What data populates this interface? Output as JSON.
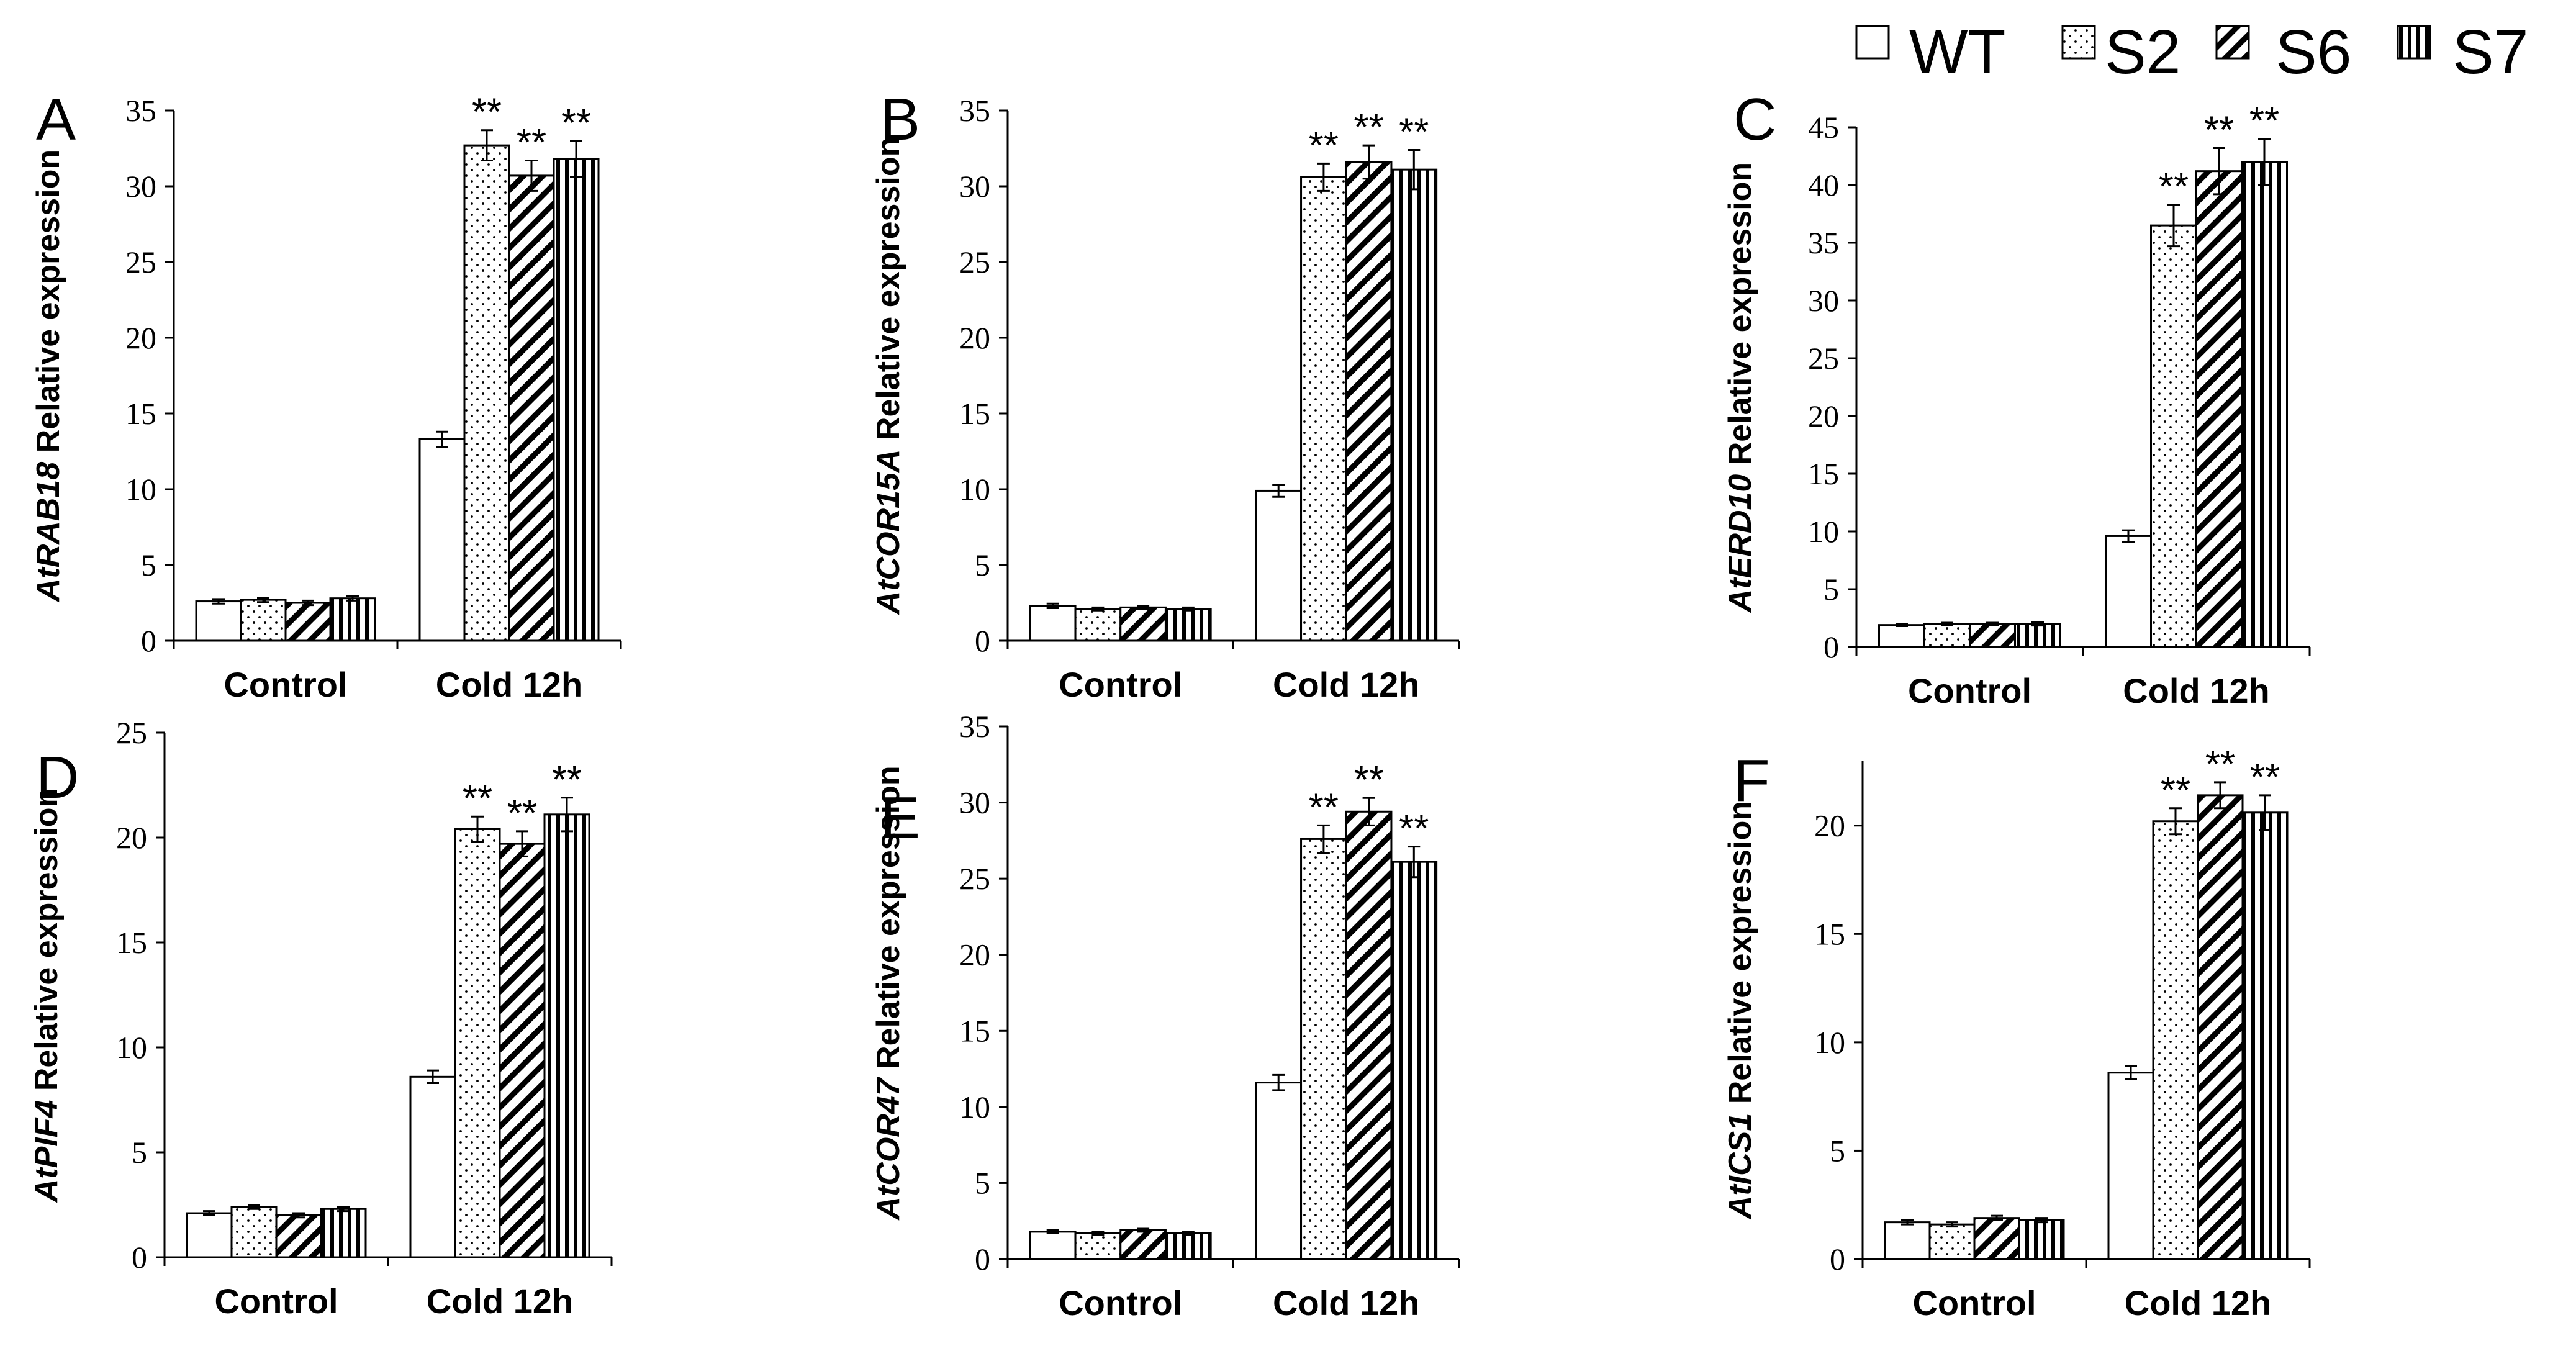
{
  "figure": {
    "legend": [
      {
        "key": "WT",
        "label": "WT",
        "pattern": "none"
      },
      {
        "key": "S2",
        "label": "S2",
        "pattern": "dots"
      },
      {
        "key": "S6",
        "label": "S6",
        "pattern": "diag"
      },
      {
        "key": "S7",
        "label": "S7",
        "pattern": "vert"
      }
    ],
    "significance_marker": "**",
    "colors": {
      "ink": "#000000",
      "background": "#ffffff"
    }
  },
  "chart_data": [
    {
      "type": "bar",
      "panel_letter": "A",
      "gene": "AtRAB18",
      "ylabel_suffix": "Relative expression",
      "categories": [
        "Control",
        "Cold 12h"
      ],
      "ylim": [
        0,
        35
      ],
      "yticks": [
        0,
        5,
        10,
        15,
        20,
        25,
        30,
        35
      ],
      "series": [
        {
          "name": "WT",
          "values": [
            2.6,
            13.3
          ],
          "errors": [
            0.15,
            0.5
          ],
          "significant": [
            false,
            false
          ]
        },
        {
          "name": "S2",
          "values": [
            2.7,
            32.7
          ],
          "errors": [
            0.15,
            1.0
          ],
          "significant": [
            false,
            true
          ]
        },
        {
          "name": "S6",
          "values": [
            2.5,
            30.7
          ],
          "errors": [
            0.15,
            1.0
          ],
          "significant": [
            false,
            true
          ]
        },
        {
          "name": "S7",
          "values": [
            2.8,
            31.8
          ],
          "errors": [
            0.15,
            1.2
          ],
          "significant": [
            false,
            true
          ]
        }
      ]
    },
    {
      "type": "bar",
      "panel_letter": "B",
      "gene": "AtCOR15A",
      "ylabel_suffix": "Relative expression",
      "categories": [
        "Control",
        "Cold 12h"
      ],
      "ylim": [
        0,
        35
      ],
      "yticks": [
        0,
        5,
        10,
        15,
        20,
        25,
        30,
        35
      ],
      "series": [
        {
          "name": "WT",
          "values": [
            2.3,
            9.9
          ],
          "errors": [
            0.15,
            0.4
          ],
          "significant": [
            false,
            false
          ]
        },
        {
          "name": "S2",
          "values": [
            2.1,
            30.6
          ],
          "errors": [
            0.1,
            0.9
          ],
          "significant": [
            false,
            true
          ]
        },
        {
          "name": "S6",
          "values": [
            2.2,
            31.6
          ],
          "errors": [
            0.1,
            1.1
          ],
          "significant": [
            false,
            true
          ]
        },
        {
          "name": "S7",
          "values": [
            2.1,
            31.1
          ],
          "errors": [
            0.1,
            1.3
          ],
          "significant": [
            false,
            true
          ]
        }
      ]
    },
    {
      "type": "bar",
      "panel_letter": "C",
      "gene": "AtERD10",
      "ylabel_suffix": "Relative expression",
      "categories": [
        "Control",
        "Cold 12h"
      ],
      "ylim": [
        0,
        45
      ],
      "yticks": [
        0,
        5,
        10,
        15,
        20,
        25,
        30,
        35,
        40,
        45
      ],
      "series": [
        {
          "name": "WT",
          "values": [
            1.9,
            9.6
          ],
          "errors": [
            0.1,
            0.5
          ],
          "significant": [
            false,
            false
          ]
        },
        {
          "name": "S2",
          "values": [
            2.0,
            36.5
          ],
          "errors": [
            0.1,
            1.8
          ],
          "significant": [
            false,
            true
          ]
        },
        {
          "name": "S6",
          "values": [
            2.0,
            41.2
          ],
          "errors": [
            0.1,
            2.0
          ],
          "significant": [
            false,
            true
          ]
        },
        {
          "name": "S7",
          "values": [
            2.0,
            42.0
          ],
          "errors": [
            0.15,
            2.0
          ],
          "significant": [
            false,
            true
          ]
        }
      ]
    },
    {
      "type": "bar",
      "panel_letter": "D",
      "gene": "AtPIF4",
      "ylabel_suffix": "Relative expression",
      "categories": [
        "Control",
        "Cold 12h"
      ],
      "ylim": [
        0,
        25
      ],
      "yticks": [
        0,
        5,
        10,
        15,
        20,
        25
      ],
      "series": [
        {
          "name": "WT",
          "values": [
            2.1,
            8.6
          ],
          "errors": [
            0.1,
            0.3
          ],
          "significant": [
            false,
            false
          ]
        },
        {
          "name": "S2",
          "values": [
            2.4,
            20.4
          ],
          "errors": [
            0.1,
            0.6
          ],
          "significant": [
            false,
            true
          ]
        },
        {
          "name": "S6",
          "values": [
            2.0,
            19.7
          ],
          "errors": [
            0.1,
            0.6
          ],
          "significant": [
            false,
            true
          ]
        },
        {
          "name": "S7",
          "values": [
            2.3,
            21.1
          ],
          "errors": [
            0.1,
            0.8
          ],
          "significant": [
            false,
            true
          ]
        }
      ]
    },
    {
      "type": "bar",
      "panel_letter": "E",
      "gene": "AtCOR47",
      "ylabel_suffix": "Relative expression",
      "categories": [
        "Control",
        "Cold 12h"
      ],
      "ylim": [
        0,
        35
      ],
      "yticks": [
        0,
        5,
        10,
        15,
        20,
        25,
        30,
        35
      ],
      "series": [
        {
          "name": "WT",
          "values": [
            1.8,
            11.6
          ],
          "errors": [
            0.1,
            0.5
          ],
          "significant": [
            false,
            false
          ]
        },
        {
          "name": "S2",
          "values": [
            1.7,
            27.6
          ],
          "errors": [
            0.1,
            0.9
          ],
          "significant": [
            false,
            true
          ]
        },
        {
          "name": "S6",
          "values": [
            1.9,
            29.4
          ],
          "errors": [
            0.1,
            0.9
          ],
          "significant": [
            false,
            true
          ]
        },
        {
          "name": "S7",
          "values": [
            1.7,
            26.1
          ],
          "errors": [
            0.1,
            1.0
          ],
          "significant": [
            false,
            true
          ]
        }
      ]
    },
    {
      "type": "bar",
      "panel_letter": "F",
      "gene": "AtICS1",
      "ylabel_suffix": "Relative expression",
      "categories": [
        "Control",
        "Cold 12h"
      ],
      "ylim": [
        0,
        23
      ],
      "yticks": [
        0,
        5,
        10,
        15,
        20
      ],
      "series": [
        {
          "name": "WT",
          "values": [
            1.7,
            8.6
          ],
          "errors": [
            0.1,
            0.3
          ],
          "significant": [
            false,
            false
          ]
        },
        {
          "name": "S2",
          "values": [
            1.6,
            20.2
          ],
          "errors": [
            0.1,
            0.6
          ],
          "significant": [
            false,
            true
          ]
        },
        {
          "name": "S6",
          "values": [
            1.9,
            21.4
          ],
          "errors": [
            0.1,
            0.6
          ],
          "significant": [
            false,
            true
          ]
        },
        {
          "name": "S7",
          "values": [
            1.8,
            20.6
          ],
          "errors": [
            0.1,
            0.8
          ],
          "significant": [
            false,
            true
          ]
        }
      ]
    }
  ]
}
